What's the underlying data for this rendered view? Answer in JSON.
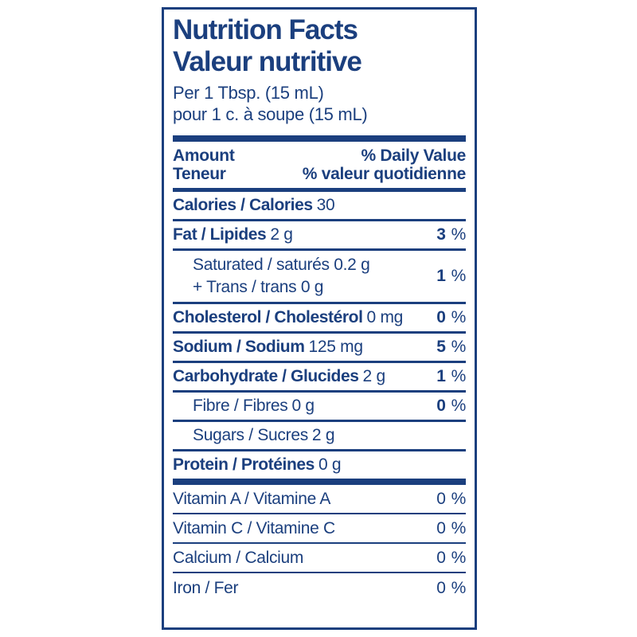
{
  "colors": {
    "ink": "#1b3f7e",
    "background": "#ffffff"
  },
  "percent_sign": "%",
  "label": {
    "title_en": "Nutrition Facts",
    "title_fr": "Valeur nutritive",
    "serving_en": "Per 1 Tbsp. (15 mL)",
    "serving_fr": "pour 1 c. à soupe (15 mL)",
    "header": {
      "amount_en": "Amount",
      "amount_fr": "Teneur",
      "daily_value_en": "% Daily Value",
      "daily_value_fr": "% valeur quotidienne"
    }
  },
  "rows": [
    {
      "id": "calories",
      "name": "Calories / Calories",
      "amount": "30",
      "bold": true
    },
    {
      "id": "fat",
      "name": "Fat / Lipides",
      "amount": "2 g",
      "bold": true,
      "dv": "3",
      "dv_bold": true
    },
    {
      "id": "saturated-trans",
      "indent": true,
      "lines": [
        "Saturated / saturés 0.2 g",
        "+ Trans / trans 0 g"
      ],
      "dv": "1",
      "dv_bold": true
    },
    {
      "id": "cholesterol",
      "name": "Cholesterol / Cholestérol",
      "amount": "0 mg",
      "bold": true,
      "dv": "0",
      "dv_bold": true
    },
    {
      "id": "sodium",
      "name": "Sodium / Sodium",
      "amount": "125 mg",
      "bold": true,
      "dv": "5",
      "dv_bold": true
    },
    {
      "id": "carbohydrate",
      "name": "Carbohydrate / Glucides",
      "amount": "2 g",
      "bold": true,
      "dv": "1",
      "dv_bold": true
    },
    {
      "id": "fibre",
      "name": "Fibre / Fibres",
      "amount": "0 g",
      "indent": true,
      "dv": "0",
      "dv_bold": true
    },
    {
      "id": "sugars",
      "name": "Sugars / Sucres",
      "amount": "2 g",
      "indent": true
    },
    {
      "id": "protein",
      "name": "Protein / Protéines",
      "amount": "0 g",
      "bold": true,
      "sep_after": "thick"
    },
    {
      "id": "vitamin-a",
      "name": "Vitamin A / Vitamine A",
      "micro": true,
      "dv": "0",
      "dv_bold": false
    },
    {
      "id": "vitamin-c",
      "name": "Vitamin C / Vitamine C",
      "micro": true,
      "dv": "0",
      "dv_bold": false
    },
    {
      "id": "calcium",
      "name": "Calcium / Calcium",
      "micro": true,
      "dv": "0",
      "dv_bold": false
    },
    {
      "id": "iron",
      "name": "Iron / Fer",
      "micro": true,
      "dv": "0",
      "dv_bold": false,
      "sep_after": "none"
    }
  ]
}
